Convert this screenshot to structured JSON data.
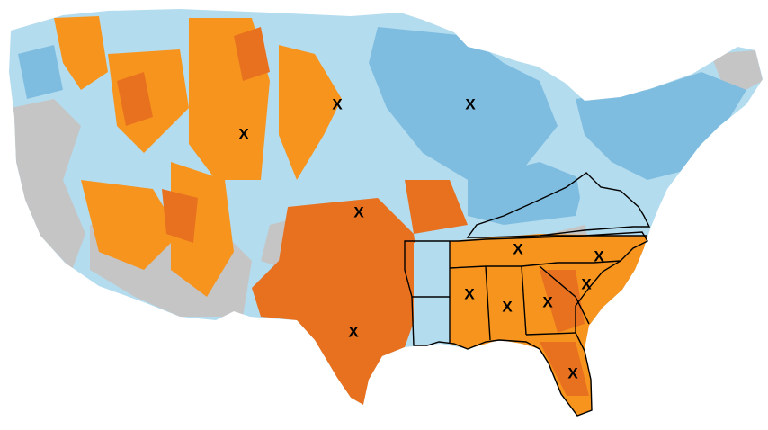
{
  "map": {
    "colors": {
      "background": "#ffffff",
      "light_blue": "#b4dcef",
      "mid_blue": "#7fbde0",
      "gray": "#c5c5c5",
      "light_orange": "#f7941d",
      "dark_orange": "#e8711f",
      "border": "#000000"
    },
    "marker_symbol": "X",
    "markers": [
      {
        "id": "montana"
      },
      {
        "id": "dakotas"
      },
      {
        "id": "michigan"
      },
      {
        "id": "kansas"
      },
      {
        "id": "texas"
      },
      {
        "id": "tennessee"
      },
      {
        "id": "north-carolina"
      },
      {
        "id": "mississippi"
      },
      {
        "id": "alabama"
      },
      {
        "id": "georgia"
      },
      {
        "id": "south-carolina"
      },
      {
        "id": "florida"
      }
    ]
  }
}
